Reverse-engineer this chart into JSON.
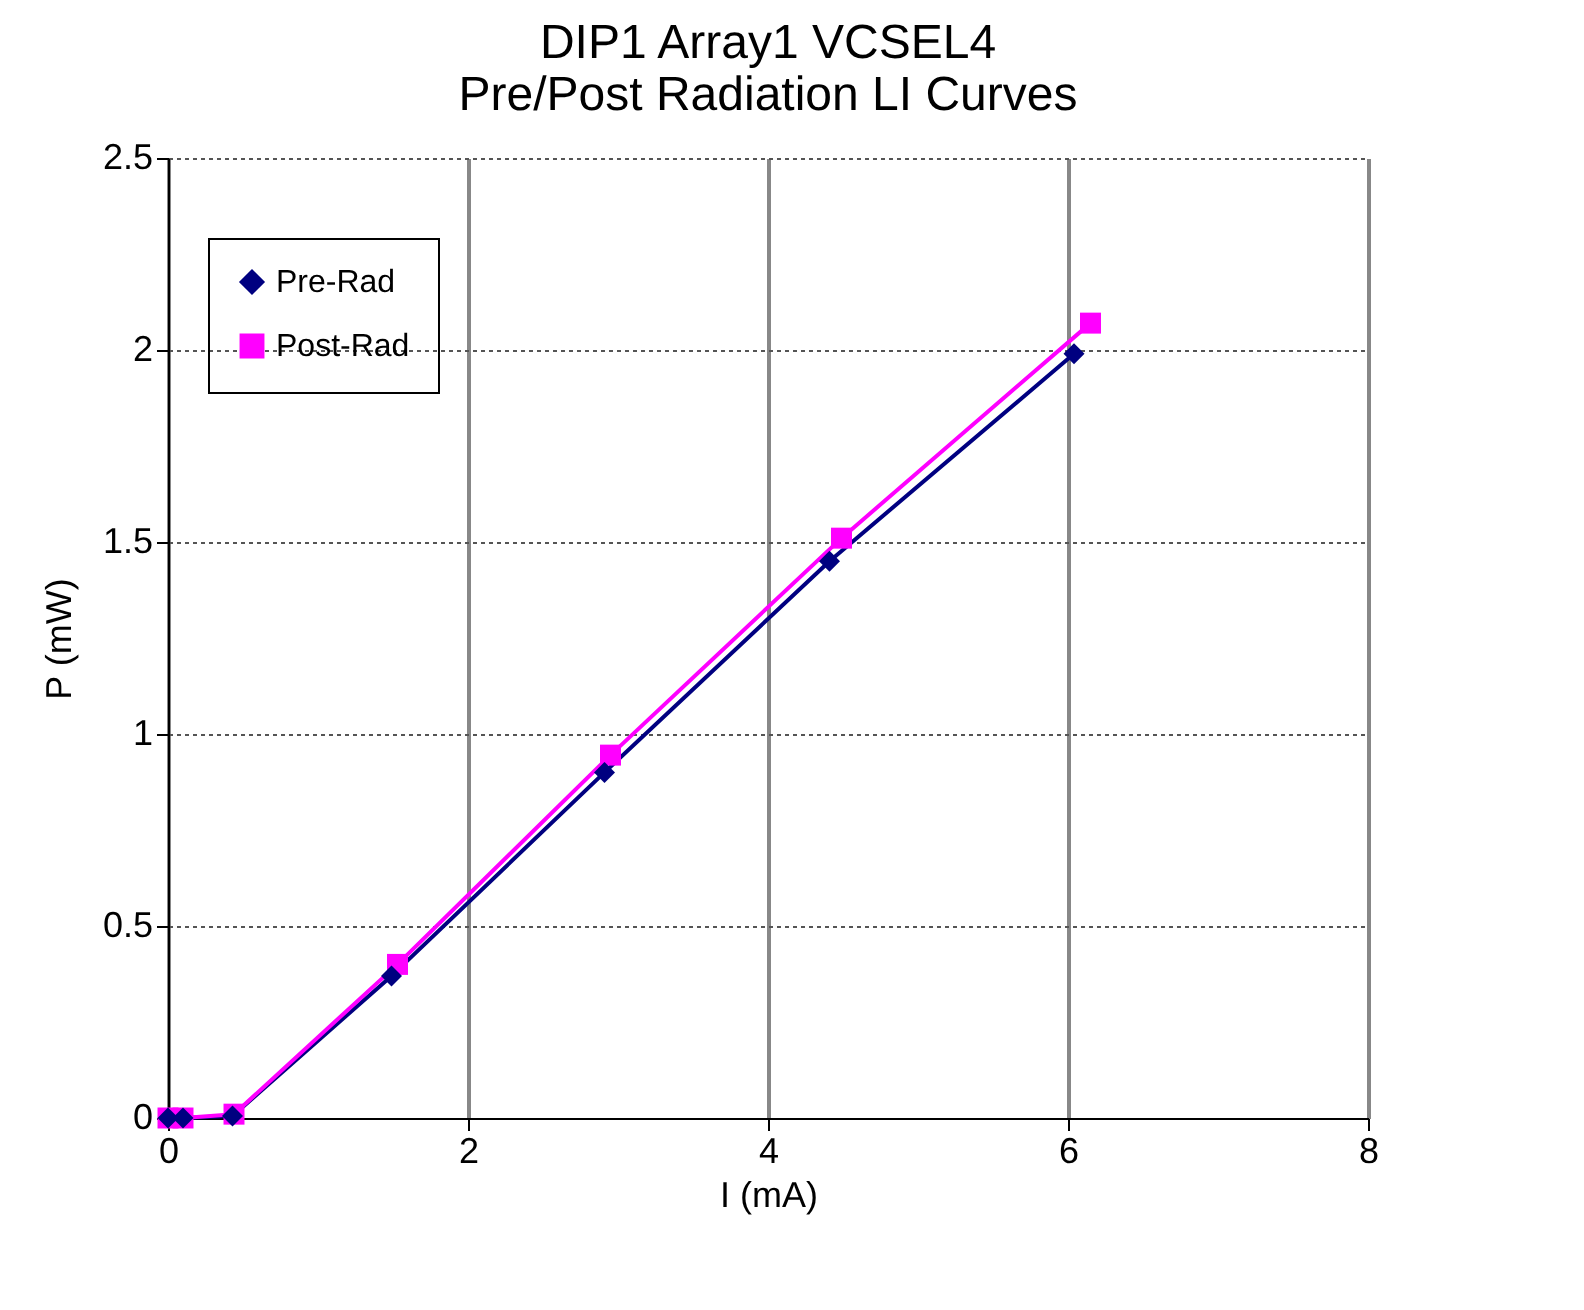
{
  "chart_data": {
    "type": "line",
    "title": "DIP1 Array1 VCSEL4\nPre/Post Radiation LI Curves",
    "xlabel": "I (mA)",
    "ylabel": "P (mW)",
    "xlim": [
      0,
      8
    ],
    "xticks": [
      0,
      2,
      4,
      6,
      8
    ],
    "ylim": [
      0,
      2.5
    ],
    "yticks": [
      0,
      0.5,
      1,
      1.5,
      2,
      2.5
    ],
    "grid": true,
    "legend": "top left",
    "series": [
      {
        "name": "Pre-Rad",
        "color": "#000080",
        "marker": "diamond",
        "x": [
          0,
          0.1,
          0.43,
          1.49,
          2.91,
          4.41,
          6.04
        ],
        "values": [
          0,
          0,
          0.005,
          0.37,
          0.9,
          1.45,
          1.99
        ]
      },
      {
        "name": "Post-Rad",
        "color": "#ff00ff",
        "marker": "square",
        "x": [
          0,
          0.1,
          0.44,
          1.53,
          2.95,
          4.49,
          6.15
        ],
        "values": [
          0,
          0,
          0.01,
          0.4,
          0.945,
          1.51,
          2.07
        ]
      }
    ]
  }
}
